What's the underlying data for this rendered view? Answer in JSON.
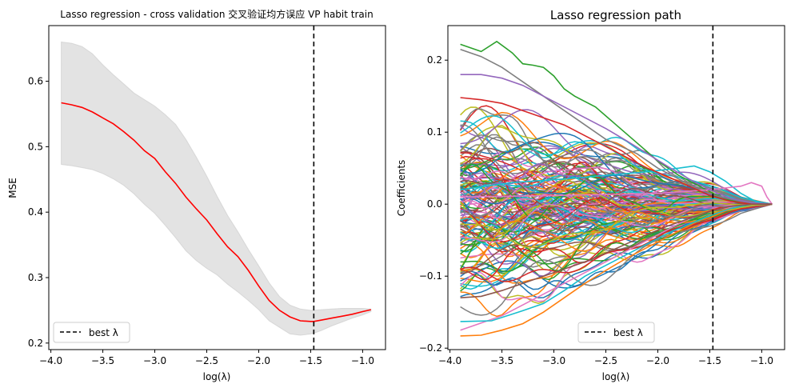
{
  "chart_data": [
    {
      "type": "line",
      "title": "Lasso regression - cross validation 交叉验证均方误应 VP habit train",
      "xlabel": "log(λ)",
      "ylabel": "MSE",
      "xlim": [
        -4.02,
        -0.78
      ],
      "ylim": [
        0.19,
        0.685
      ],
      "xticks": [
        -4.0,
        -3.5,
        -3.0,
        -2.5,
        -2.0,
        -1.5,
        -1.0
      ],
      "xtick_labels": [
        "−4.0",
        "−3.5",
        "−3.0",
        "−2.5",
        "−2.0",
        "−1.5",
        "−1.0"
      ],
      "yticks": [
        0.2,
        0.3,
        0.4,
        0.5,
        0.6
      ],
      "ytick_labels": [
        "0.2",
        "0.3",
        "0.4",
        "0.5",
        "0.6"
      ],
      "grid": false,
      "legend_position": "lower-left",
      "legend": [
        "best λ"
      ],
      "best_log_lambda": -1.47,
      "series": [
        {
          "color": "#ff0000",
          "x": [
            -3.9,
            -3.8,
            -3.7,
            -3.6,
            -3.5,
            -3.4,
            -3.3,
            -3.2,
            -3.1,
            -3.0,
            -2.9,
            -2.8,
            -2.7,
            -2.6,
            -2.5,
            -2.4,
            -2.3,
            -2.2,
            -2.1,
            -2.0,
            -1.9,
            -1.8,
            -1.7,
            -1.6,
            -1.5,
            -1.47,
            -1.4,
            -1.3,
            -1.2,
            -1.1,
            -1.0,
            -0.92
          ],
          "mean": [
            0.567,
            0.564,
            0.56,
            0.553,
            0.544,
            0.535,
            0.523,
            0.51,
            0.494,
            0.482,
            0.462,
            0.444,
            0.423,
            0.405,
            0.388,
            0.367,
            0.347,
            0.332,
            0.311,
            0.287,
            0.265,
            0.25,
            0.24,
            0.234,
            0.233,
            0.233,
            0.235,
            0.238,
            0.241,
            0.244,
            0.248,
            0.251
          ],
          "upper": [
            0.66,
            0.658,
            0.653,
            0.642,
            0.625,
            0.61,
            0.596,
            0.582,
            0.572,
            0.562,
            0.549,
            0.534,
            0.511,
            0.484,
            0.455,
            0.424,
            0.395,
            0.37,
            0.343,
            0.318,
            0.292,
            0.271,
            0.258,
            0.252,
            0.25,
            0.25,
            0.251,
            0.252,
            0.253,
            0.253,
            0.253,
            0.252
          ],
          "lower": [
            0.473,
            0.471,
            0.468,
            0.465,
            0.459,
            0.451,
            0.441,
            0.428,
            0.412,
            0.398,
            0.38,
            0.361,
            0.341,
            0.326,
            0.314,
            0.304,
            0.29,
            0.278,
            0.265,
            0.251,
            0.234,
            0.224,
            0.214,
            0.212,
            0.214,
            0.215,
            0.219,
            0.226,
            0.232,
            0.238,
            0.243,
            0.248
          ]
        }
      ]
    },
    {
      "type": "line",
      "title": "Lasso regression path",
      "xlabel": "log(λ)",
      "ylabel": "Coefficients",
      "xlim": [
        -4.02,
        -0.78
      ],
      "ylim": [
        -0.202,
        0.248
      ],
      "xticks": [
        -4.0,
        -3.5,
        -3.0,
        -2.5,
        -2.0,
        -1.5,
        -1.0
      ],
      "xtick_labels": [
        "−4.0",
        "−3.5",
        "−3.0",
        "−2.5",
        "−2.0",
        "−1.5",
        "−1.0"
      ],
      "yticks": [
        -0.2,
        -0.1,
        0.0,
        0.1,
        0.2
      ],
      "ytick_labels": [
        "−0.2",
        "−0.1",
        "0.0",
        "0.1",
        "0.2"
      ],
      "grid": false,
      "legend_position": "lower-center",
      "legend": [
        "best λ"
      ],
      "best_log_lambda": -1.47,
      "x_range": [
        -3.9,
        -0.9
      ],
      "palette": [
        "#1f77b4",
        "#ff7f0e",
        "#2ca02c",
        "#d62728",
        "#9467bd",
        "#8c564b",
        "#e377c2",
        "#7f7f7f",
        "#bcbd22",
        "#17becf"
      ],
      "highlight_series": [
        {
          "color": "#2ca02c",
          "x": [
            -3.9,
            -3.7,
            -3.55,
            -3.4,
            -3.3,
            -3.2,
            -3.1,
            -3.0,
            -2.9,
            -2.8,
            -2.6,
            -2.4,
            -2.2,
            -2.0,
            -1.8,
            -1.6,
            -1.4,
            -1.2,
            -1.0,
            -0.9
          ],
          "y": [
            0.222,
            0.212,
            0.226,
            0.21,
            0.195,
            0.193,
            0.19,
            0.178,
            0.16,
            0.15,
            0.135,
            0.11,
            0.085,
            0.06,
            0.04,
            0.025,
            0.01,
            0.002,
            0.0,
            0.0
          ]
        },
        {
          "color": "#7f7f7f",
          "x": [
            -3.9,
            -3.7,
            -3.5,
            -3.3,
            -3.1,
            -2.9,
            -2.7,
            -2.5,
            -2.2,
            -2.0,
            -1.8,
            -1.6,
            -1.4,
            -1.2,
            -1.0,
            -0.9
          ],
          "y": [
            0.215,
            0.205,
            0.19,
            0.17,
            0.15,
            0.13,
            0.11,
            0.09,
            0.07,
            0.05,
            0.035,
            0.02,
            0.01,
            0.004,
            0.0,
            0.0
          ]
        },
        {
          "color": "#ff7f0e",
          "x": [
            -3.9,
            -3.7,
            -3.5,
            -3.3,
            -3.1,
            -2.9,
            -2.7,
            -2.5,
            -2.3,
            -2.1,
            -1.9,
            -1.7,
            -1.5,
            -1.3,
            -1.1,
            -0.9
          ],
          "y": [
            -0.183,
            -0.182,
            -0.175,
            -0.166,
            -0.15,
            -0.13,
            -0.11,
            -0.092,
            -0.075,
            -0.06,
            -0.045,
            -0.03,
            -0.015,
            -0.005,
            0.0,
            0.0
          ]
        },
        {
          "color": "#e377c2",
          "x": [
            -3.9,
            -3.7,
            -3.5,
            -3.3,
            -3.1,
            -2.9,
            -2.7,
            -2.5,
            -2.3,
            -2.1,
            -1.9,
            -1.7,
            -1.5,
            -1.3,
            -1.1,
            -0.9
          ],
          "y": [
            -0.175,
            -0.165,
            -0.155,
            -0.14,
            -0.125,
            -0.11,
            -0.095,
            -0.08,
            -0.065,
            -0.05,
            -0.035,
            -0.02,
            -0.01,
            -0.004,
            0.0,
            0.0
          ]
        },
        {
          "color": "#17becf",
          "x": [
            -3.9,
            -3.6,
            -3.3,
            -3.1,
            -2.9,
            -2.7,
            -2.5,
            -2.3,
            -2.1,
            -1.9,
            -1.7,
            -1.5,
            -1.3,
            -1.1,
            -0.9
          ],
          "y": [
            -0.163,
            -0.162,
            -0.148,
            -0.138,
            -0.12,
            -0.1,
            -0.085,
            -0.07,
            -0.055,
            -0.04,
            -0.028,
            -0.016,
            -0.006,
            0.0,
            0.0
          ]
        },
        {
          "color": "#17becf",
          "x": [
            -3.9,
            -3.4,
            -2.9,
            -2.5,
            -2.1,
            -1.8,
            -1.65,
            -1.5,
            -1.35,
            -1.2,
            -1.05,
            -0.9
          ],
          "y": [
            0.02,
            0.03,
            0.035,
            0.04,
            0.045,
            0.05,
            0.053,
            0.045,
            0.032,
            0.015,
            0.003,
            0.0
          ]
        },
        {
          "color": "#e377c2",
          "x": [
            -3.9,
            -3.0,
            -2.0,
            -1.5,
            -1.2,
            -1.1,
            -1.0,
            -0.95,
            -0.9
          ],
          "y": [
            0.01,
            0.012,
            0.015,
            0.02,
            0.025,
            0.03,
            0.025,
            0.01,
            0.0
          ]
        },
        {
          "color": "#9467bd",
          "x": [
            -3.9,
            -3.7,
            -3.5,
            -3.3,
            -3.1,
            -2.9,
            -2.7,
            -2.5,
            -2.3,
            -2.1,
            -1.9,
            -1.7,
            -1.5,
            -1.3,
            -1.1,
            -0.9
          ],
          "y": [
            0.18,
            0.18,
            0.175,
            0.165,
            0.15,
            0.135,
            0.12,
            0.105,
            0.088,
            0.07,
            0.052,
            0.035,
            0.02,
            0.008,
            0.002,
            0.0
          ]
        },
        {
          "color": "#d62728",
          "x": [
            -3.9,
            -3.7,
            -3.5,
            -3.3,
            -3.1,
            -2.9,
            -2.7,
            -2.5,
            -2.3,
            -2.1,
            -1.9,
            -1.7,
            -1.5,
            -1.3,
            -1.1,
            -0.9
          ],
          "y": [
            0.148,
            0.145,
            0.14,
            0.13,
            0.12,
            0.11,
            0.095,
            0.08,
            0.065,
            0.05,
            0.038,
            0.025,
            0.012,
            0.004,
            0.0,
            0.0
          ]
        },
        {
          "color": "#8c564b",
          "x": [
            -3.9,
            -3.7,
            -3.5,
            -3.3,
            -3.1,
            -2.9,
            -2.7,
            -2.5,
            -2.3,
            -2.1,
            -1.9,
            -1.7,
            -1.5,
            -1.3,
            -1.1,
            -0.9
          ],
          "y": [
            -0.13,
            -0.128,
            -0.12,
            -0.11,
            -0.1,
            -0.09,
            -0.08,
            -0.068,
            -0.055,
            -0.042,
            -0.03,
            -0.02,
            -0.01,
            -0.003,
            0.0,
            0.0
          ]
        }
      ],
      "bulk_series_count": 150,
      "bulk_envelope": {
        "x": [
          -3.9,
          -3.5,
          -3.0,
          -2.5,
          -2.0,
          -1.5,
          -1.2,
          -0.9
        ],
        "amplitude": [
          0.15,
          0.145,
          0.125,
          0.1,
          0.07,
          0.035,
          0.012,
          0.0
        ]
      }
    }
  ]
}
